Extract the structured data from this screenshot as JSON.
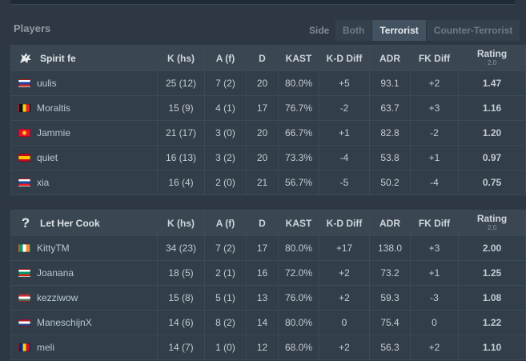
{
  "players_title": "Players",
  "side_label": "Side",
  "side_tabs": [
    {
      "label": "Both",
      "active": false
    },
    {
      "label": "Terrorist",
      "active": true
    },
    {
      "label": "Counter-Terrorist",
      "active": false
    }
  ],
  "columns": {
    "k": "K (hs)",
    "a": "A (f)",
    "d": "D",
    "kast": "KAST",
    "kd": "K-D Diff",
    "adr": "ADR",
    "fk": "FK Diff",
    "rating": "Rating",
    "rating_ver": "2.0"
  },
  "teams": [
    {
      "name": "Spirit fe",
      "logo_icon": "dragon-logo-icon",
      "players": [
        {
          "name": "uulis",
          "flag": "russia",
          "k": "25 (12)",
          "a": "7 (2)",
          "d": "20",
          "kast": "80.0%",
          "kd": "+5",
          "adr": "93.1",
          "fk": "+2",
          "rating": "1.47"
        },
        {
          "name": "Moraltis",
          "flag": "belgium",
          "k": "15 (9)",
          "a": "4 (1)",
          "d": "17",
          "kast": "76.7%",
          "kd": "-2",
          "adr": "63.7",
          "fk": "+3",
          "rating": "1.16"
        },
        {
          "name": "Jammie",
          "flag": "kyrgyzstan",
          "k": "21 (17)",
          "a": "3 (0)",
          "d": "20",
          "kast": "66.7%",
          "kd": "+1",
          "adr": "82.8",
          "fk": "-2",
          "rating": "1.20"
        },
        {
          "name": "quiet",
          "flag": "spain",
          "k": "16 (13)",
          "a": "3 (2)",
          "d": "20",
          "kast": "73.3%",
          "kd": "-4",
          "adr": "53.8",
          "fk": "+1",
          "rating": "0.97"
        },
        {
          "name": "xia",
          "flag": "slovakia",
          "k": "16 (4)",
          "a": "2 (0)",
          "d": "21",
          "kast": "56.7%",
          "kd": "-5",
          "adr": "50.2",
          "fk": "-4",
          "rating": "0.75"
        }
      ]
    },
    {
      "name": "Let Her Cook",
      "logo_icon": "question-mark-icon",
      "logo_glyph": "?",
      "players": [
        {
          "name": "KittyTM",
          "flag": "ireland",
          "k": "34 (23)",
          "a": "7 (2)",
          "d": "17",
          "kast": "80.0%",
          "kd": "+17",
          "adr": "138.0",
          "fk": "+3",
          "rating": "2.00"
        },
        {
          "name": "Joanana",
          "flag": "bulgaria",
          "k": "18 (5)",
          "a": "2 (1)",
          "d": "16",
          "kast": "72.0%",
          "kd": "+2",
          "adr": "73.2",
          "fk": "+1",
          "rating": "1.25"
        },
        {
          "name": "kezziwow",
          "flag": "hungary",
          "k": "15 (8)",
          "a": "5 (1)",
          "d": "13",
          "kast": "76.0%",
          "kd": "+2",
          "adr": "59.3",
          "fk": "-3",
          "rating": "1.08"
        },
        {
          "name": "ManeschijnX",
          "flag": "netherlands",
          "k": "14 (6)",
          "a": "8 (2)",
          "d": "14",
          "kast": "80.0%",
          "kd": "0",
          "adr": "75.4",
          "fk": "0",
          "rating": "1.22"
        },
        {
          "name": "meli",
          "flag": "romania",
          "k": "14 (7)",
          "a": "1 (0)",
          "d": "12",
          "kast": "68.0%",
          "kd": "+2",
          "adr": "56.3",
          "fk": "+2",
          "rating": "1.10"
        }
      ]
    }
  ],
  "colors": {
    "positive": "#5fd35b",
    "negative": "#e0524d",
    "rating_good": "#69d85a",
    "rating_bad": "#e0524d"
  }
}
